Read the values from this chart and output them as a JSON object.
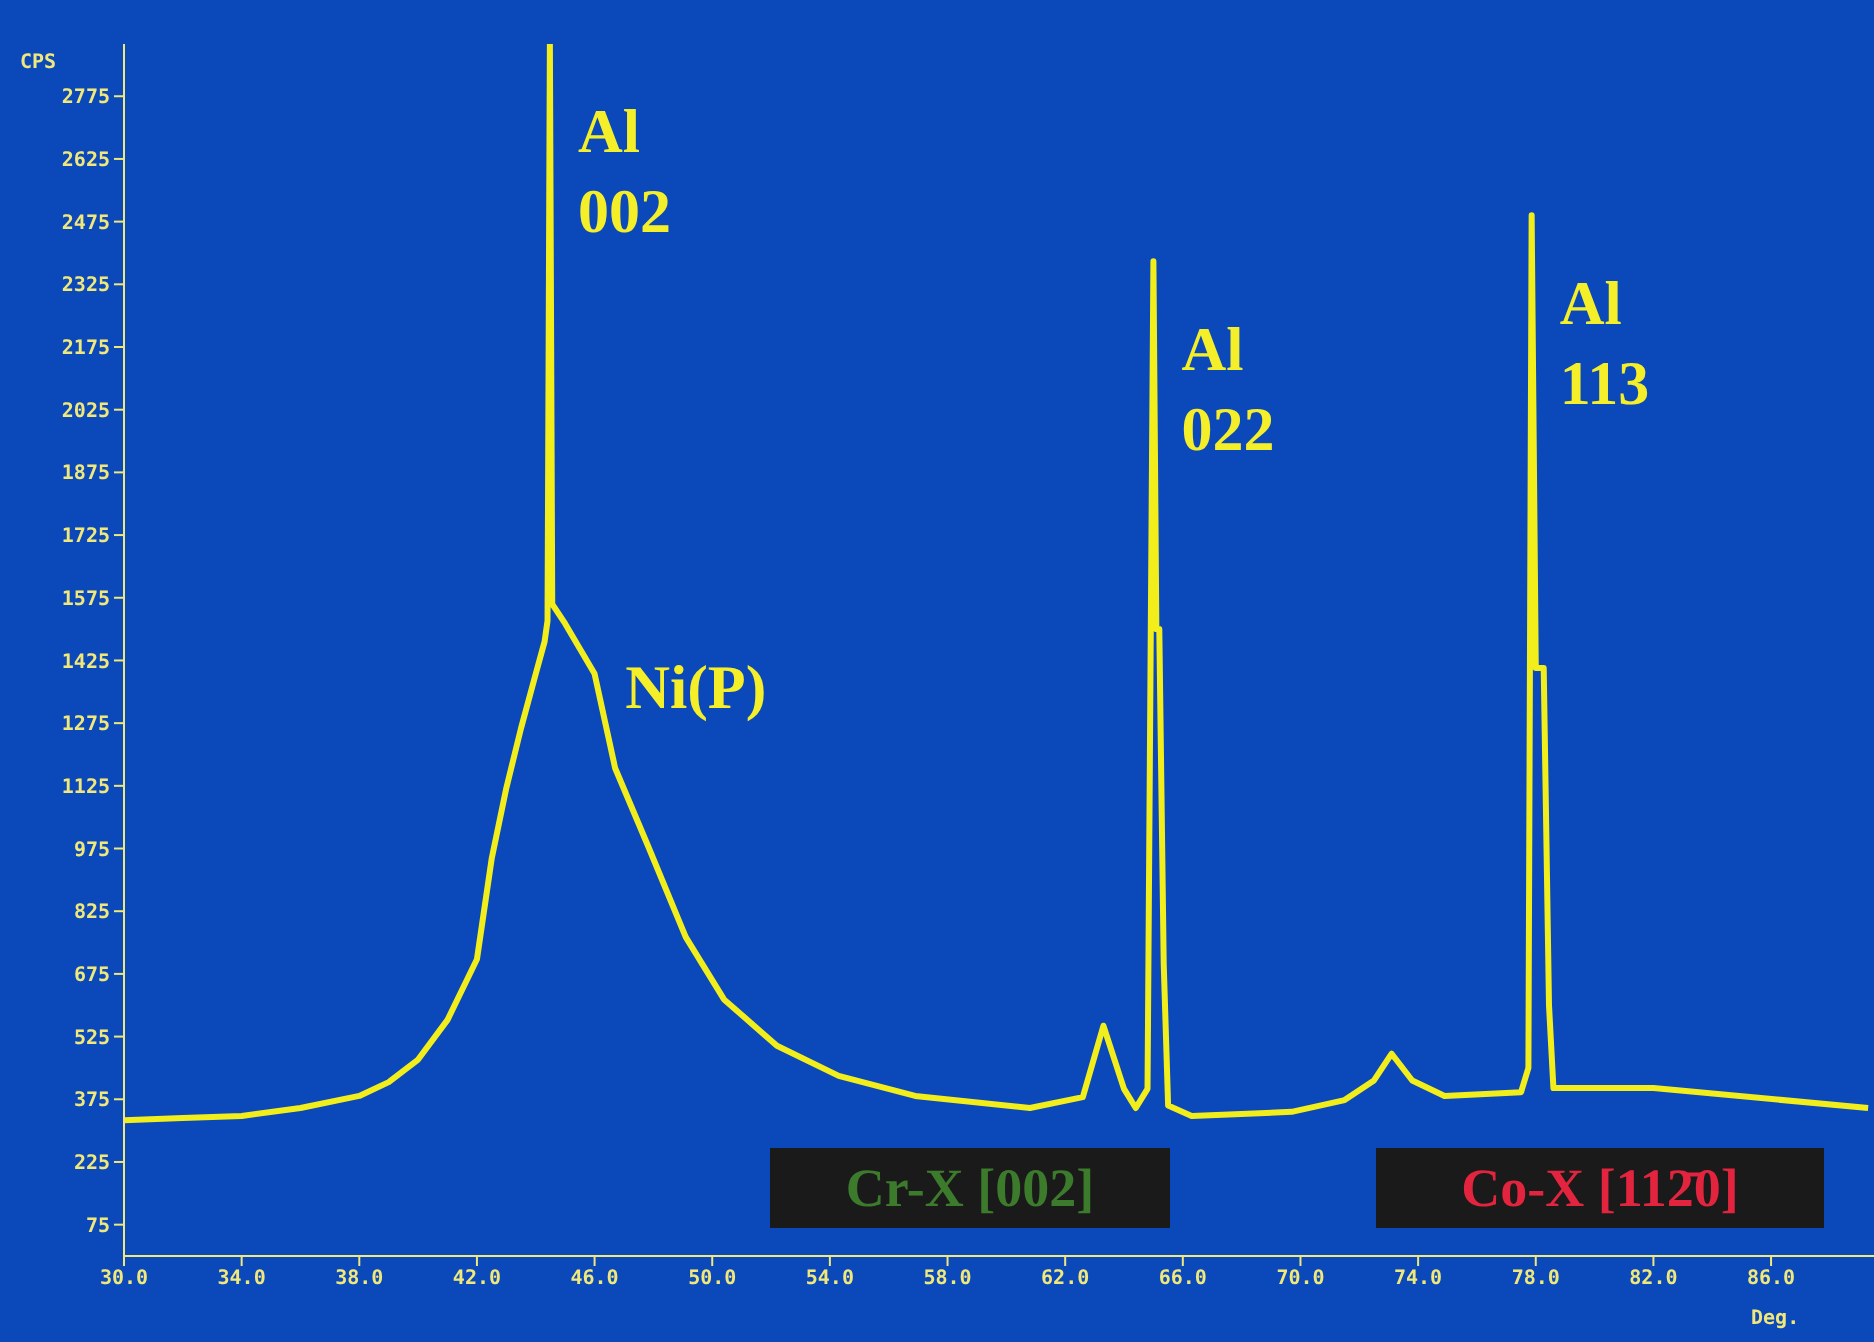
{
  "chart_data": {
    "type": "line",
    "xlabel": "Deg.",
    "ylabel": "CPS",
    "x": [
      30.0,
      32.0,
      34.0,
      36.0,
      38.0,
      39.0,
      40.0,
      41.0,
      42.0,
      42.5,
      43.0,
      43.5,
      44.0,
      44.3,
      44.4,
      44.48,
      44.56,
      45.0,
      46.0,
      46.7,
      47.8,
      49.1,
      50.4,
      52.2,
      54.3,
      56.9,
      60.8,
      62.6,
      63.3,
      64.0,
      64.4,
      64.8,
      65.0,
      65.1,
      65.2,
      65.35,
      65.5,
      66.3,
      69.7,
      71.5,
      72.5,
      73.1,
      73.8,
      74.9,
      77.5,
      77.75,
      77.86,
      78.0,
      78.27,
      78.45,
      78.6,
      82.0,
      89.3
    ],
    "series": [
      {
        "color": "#f2ee1c",
        "values": [
          325,
          330,
          335,
          354,
          383,
          416,
          470,
          565,
          710,
          950,
          1120,
          1263,
          1393,
          1470,
          1520,
          2900,
          1560,
          1513,
          1393,
          1167,
          984,
          763,
          614,
          503,
          431,
          383,
          354,
          380,
          551,
          400,
          354,
          400,
          2380,
          1500,
          1500,
          700,
          360,
          335,
          345,
          373,
          420,
          484,
          420,
          383,
          392,
          450,
          2490,
          1407,
          1407,
          600,
          402,
          402,
          354
        ]
      }
    ],
    "xlim": [
      30,
      89.5
    ],
    "xticks": [
      {
        "value": 30,
        "label": "30.0"
      },
      {
        "value": 34,
        "label": "34.0"
      },
      {
        "value": 38,
        "label": "38.0"
      },
      {
        "value": 42,
        "label": "42.0"
      },
      {
        "value": 46,
        "label": "46.0"
      },
      {
        "value": 50,
        "label": "50.0"
      },
      {
        "value": 54,
        "label": "54.0"
      },
      {
        "value": 58,
        "label": "58.0"
      },
      {
        "value": 62,
        "label": "62.0"
      },
      {
        "value": 66,
        "label": "66.0"
      },
      {
        "value": 70,
        "label": "70.0"
      },
      {
        "value": 74,
        "label": "74.0"
      },
      {
        "value": 78,
        "label": "78.0"
      },
      {
        "value": 82,
        "label": "82.0"
      },
      {
        "value": 86,
        "label": "86.0"
      }
    ],
    "ylim": [
      0,
      2900
    ],
    "yticks": [
      75,
      225,
      375,
      525,
      675,
      825,
      975,
      1125,
      1275,
      1425,
      1575,
      1725,
      1875,
      2025,
      2175,
      2325,
      2475,
      2625,
      2775
    ],
    "grid": false,
    "legend": false,
    "marker": "none",
    "line_style": "solid",
    "annotations": [
      {
        "text": "Al\n002",
        "x": 44.48,
        "y": 2900
      },
      {
        "text": "Ni(P)",
        "x": 45.0,
        "y": 1513
      },
      {
        "text": "Al\n022",
        "x": 65.0,
        "y": 2380
      },
      {
        "text": "Al\n113",
        "x": 77.86,
        "y": 2490
      },
      "Cr-X [002]",
      "Co-X [112̄0]"
    ]
  }
}
